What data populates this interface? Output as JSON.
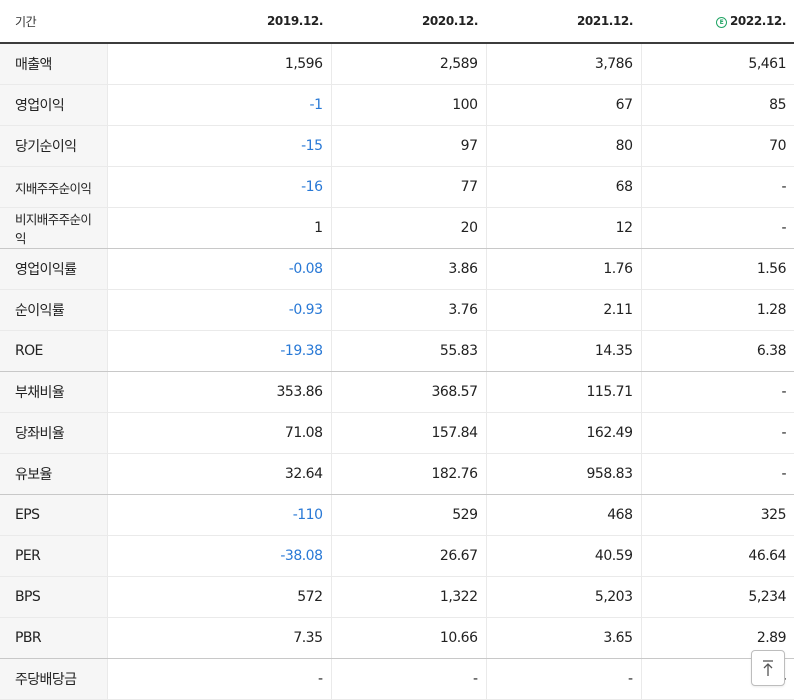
{
  "header": {
    "period_label": "기간",
    "periods": [
      "2019.12.",
      "2020.12.",
      "2021.12.",
      "2022.12."
    ],
    "estimate_icon": "estimate-icon",
    "estimate_mark": "E"
  },
  "rows": [
    {
      "label": "매출액",
      "values": [
        "1,596",
        "2,589",
        "3,786",
        "5,461"
      ]
    },
    {
      "label": "영업이익",
      "values": [
        "-1",
        "100",
        "67",
        "85"
      ]
    },
    {
      "label": "당기순이익",
      "values": [
        "-15",
        "97",
        "80",
        "70"
      ]
    },
    {
      "label": "지배주주순이익",
      "values": [
        "-16",
        "77",
        "68",
        "-"
      ]
    },
    {
      "label": "비지배주주순이익",
      "values": [
        "1",
        "20",
        "12",
        "-"
      ]
    },
    {
      "label": "영업이익률",
      "values": [
        "-0.08",
        "3.86",
        "1.76",
        "1.56"
      ]
    },
    {
      "label": "순이익률",
      "values": [
        "-0.93",
        "3.76",
        "2.11",
        "1.28"
      ]
    },
    {
      "label": "ROE",
      "values": [
        "-19.38",
        "55.83",
        "14.35",
        "6.38"
      ]
    },
    {
      "label": "부채비율",
      "values": [
        "353.86",
        "368.57",
        "115.71",
        "-"
      ]
    },
    {
      "label": "당좌비율",
      "values": [
        "71.08",
        "157.84",
        "162.49",
        "-"
      ]
    },
    {
      "label": "유보율",
      "values": [
        "32.64",
        "182.76",
        "958.83",
        "-"
      ]
    },
    {
      "label": "EPS",
      "values": [
        "-110",
        "529",
        "468",
        "325"
      ]
    },
    {
      "label": "PER",
      "values": [
        "-38.08",
        "26.67",
        "40.59",
        "46.64"
      ]
    },
    {
      "label": "BPS",
      "values": [
        "572",
        "1,322",
        "5,203",
        "5,234"
      ]
    },
    {
      "label": "PBR",
      "values": [
        "7.35",
        "10.66",
        "3.65",
        "2.89"
      ]
    },
    {
      "label": "주당배당금",
      "values": [
        "-",
        "-",
        "-",
        "-"
      ]
    }
  ],
  "colors": {
    "negative": "#2979d6",
    "estimate": "#22a565",
    "label_bg": "#f6f6f6"
  },
  "top_button": {
    "icon": "arrow-up-icon"
  }
}
